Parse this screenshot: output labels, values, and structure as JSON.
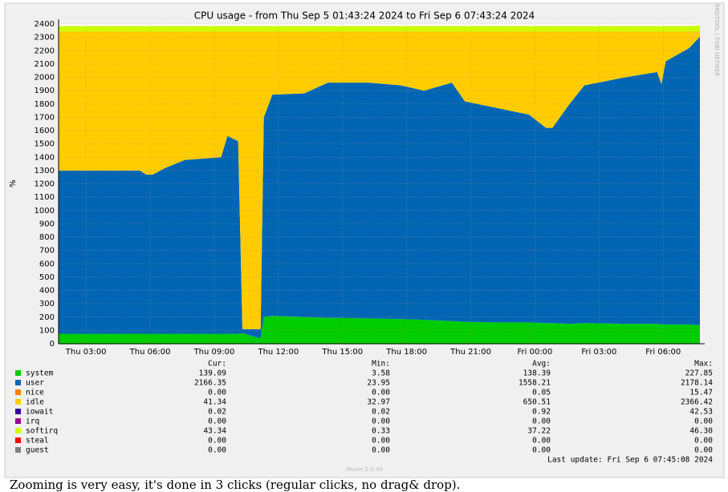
{
  "chart_data": {
    "type": "stacked-area",
    "title": "CPU usage - from Thu Sep  5 01:43:24 2024 to Fri Sep  6 07:43:24 2024",
    "y_label": "%",
    "x": [
      0,
      3.8,
      4.1,
      4.4,
      5,
      5.9,
      7.6,
      7.9,
      8.4,
      8.6,
      9.45,
      9.6,
      10,
      11.5,
      12.6,
      14.5,
      16,
      17.1,
      18.4,
      19,
      20.5,
      22,
      22.8,
      23.1,
      23.9,
      24.6,
      26.5,
      28,
      28.2,
      28.4,
      29.5,
      30
    ],
    "xlim": [
      0,
      30
    ],
    "xticks": [
      {
        "value": 1.283,
        "label": "Thu 03:00"
      },
      {
        "value": 4.283,
        "label": "Thu 06:00"
      },
      {
        "value": 7.283,
        "label": "Thu 09:00"
      },
      {
        "value": 10.283,
        "label": "Thu 12:00"
      },
      {
        "value": 13.283,
        "label": "Thu 15:00"
      },
      {
        "value": 16.283,
        "label": "Thu 18:00"
      },
      {
        "value": 19.283,
        "label": "Thu 21:00"
      },
      {
        "value": 22.283,
        "label": "Fri 00:00"
      },
      {
        "value": 25.283,
        "label": "Fri 03:00"
      },
      {
        "value": 28.283,
        "label": "Fri 06:00"
      }
    ],
    "ylim": [
      0,
      2400
    ],
    "yticks": [
      0,
      100,
      200,
      300,
      400,
      500,
      600,
      700,
      800,
      900,
      1000,
      1100,
      1200,
      1300,
      1400,
      1500,
      1600,
      1700,
      1800,
      1900,
      2000,
      2100,
      2200,
      2300,
      2400
    ],
    "grid": true,
    "series": [
      {
        "name": "system",
        "color": "#00cc00",
        "values": [
          75,
          75,
          75,
          75,
          75,
          75,
          75,
          75,
          75,
          80,
          40,
          200,
          210,
          200,
          195,
          190,
          185,
          180,
          170,
          165,
          160,
          160,
          155,
          155,
          150,
          155,
          150,
          150,
          145,
          145,
          145,
          139
        ]
      },
      {
        "name": "user",
        "color": "#0066b3",
        "values": [
          1225,
          1225,
          1195,
          1195,
          1245,
          1305,
          1325,
          1485,
          1445,
          30,
          70,
          1500,
          1660,
          1680,
          1765,
          1770,
          1755,
          1720,
          1790,
          1655,
          1610,
          1560,
          1465,
          1465,
          1650,
          1785,
          1850,
          1890,
          1805,
          1975,
          2075,
          2166
        ]
      },
      {
        "name": "nice",
        "color": "#ff8000",
        "values": [
          0,
          0,
          0,
          0,
          0,
          0,
          0,
          0,
          0,
          0,
          0,
          0,
          0,
          0,
          0,
          0,
          0,
          0,
          0,
          0,
          0,
          0,
          0,
          0,
          0,
          0,
          0,
          0,
          0,
          0,
          0,
          0
        ]
      },
      {
        "name": "idle",
        "color": "#ffcc00",
        "values": [
          1045,
          1045,
          1075,
          1075,
          1025,
          965,
          945,
          785,
          825,
          2235,
          2235,
          645,
          475,
          465,
          385,
          385,
          405,
          445,
          385,
          525,
          575,
          625,
          725,
          725,
          545,
          405,
          345,
          305,
          395,
          225,
          125,
          41
        ]
      },
      {
        "name": "iowait",
        "color": "#330099",
        "values": [
          0,
          0,
          0,
          0,
          0,
          0,
          0,
          0,
          0,
          0,
          0,
          0,
          0,
          0,
          0,
          0,
          0,
          0,
          0,
          0,
          0,
          0,
          0,
          0,
          0,
          0,
          0,
          0,
          0,
          0,
          0,
          0
        ]
      },
      {
        "name": "irq",
        "color": "#990099",
        "values": [
          0,
          0,
          0,
          0,
          0,
          0,
          0,
          0,
          0,
          0,
          0,
          0,
          0,
          0,
          0,
          0,
          0,
          0,
          0,
          0,
          0,
          0,
          0,
          0,
          0,
          0,
          0,
          0,
          0,
          0,
          0,
          0
        ]
      },
      {
        "name": "softirq",
        "color": "#ccff00",
        "values": [
          40,
          40,
          40,
          40,
          40,
          40,
          40,
          40,
          40,
          40,
          40,
          40,
          40,
          40,
          40,
          40,
          40,
          40,
          40,
          40,
          40,
          40,
          40,
          40,
          40,
          40,
          40,
          40,
          40,
          40,
          40,
          43
        ]
      },
      {
        "name": "steal",
        "color": "#ff0000",
        "values": [
          0,
          0,
          0,
          0,
          0,
          0,
          0,
          0,
          0,
          0,
          0,
          0,
          0,
          0,
          0,
          0,
          0,
          0,
          0,
          0,
          0,
          0,
          0,
          0,
          0,
          0,
          0,
          0,
          0,
          0,
          0,
          0
        ]
      },
      {
        "name": "guest",
        "color": "#808080",
        "values": [
          0,
          0,
          0,
          0,
          0,
          0,
          0,
          0,
          0,
          0,
          0,
          0,
          0,
          0,
          0,
          0,
          0,
          0,
          0,
          0,
          0,
          0,
          0,
          0,
          0,
          0,
          0,
          0,
          0,
          0,
          0,
          0
        ]
      }
    ]
  },
  "legend_table": {
    "headers": [
      "Cur:",
      "Min:",
      "Avg:",
      "Max:"
    ],
    "rows": [
      [
        "139.09",
        "3.58",
        "138.39",
        "227.85"
      ],
      [
        "2166.35",
        "23.95",
        "1558.21",
        "2178.14"
      ],
      [
        "0.00",
        "0.00",
        "0.05",
        "15.47"
      ],
      [
        "41.34",
        "32.97",
        "650.51",
        "2366.42"
      ],
      [
        "0.02",
        "0.02",
        "0.92",
        "42.53"
      ],
      [
        "0.00",
        "0.00",
        "0.00",
        "0.00"
      ],
      [
        "43.34",
        "0.33",
        "37.22",
        "46.30"
      ],
      [
        "0.00",
        "0.00",
        "0.00",
        "0.00"
      ],
      [
        "0.00",
        "0.00",
        "0.00",
        "0.00"
      ]
    ]
  },
  "last_update": "Last update: Fri Sep  6 07:45:08 2024",
  "version": "Munin 2.0.49",
  "watermark": "RRDTOOL / TOBI OETIKER",
  "footer_text": "Zooming is very easy, it's done in 3 clicks (regular clicks, no drag& drop)."
}
